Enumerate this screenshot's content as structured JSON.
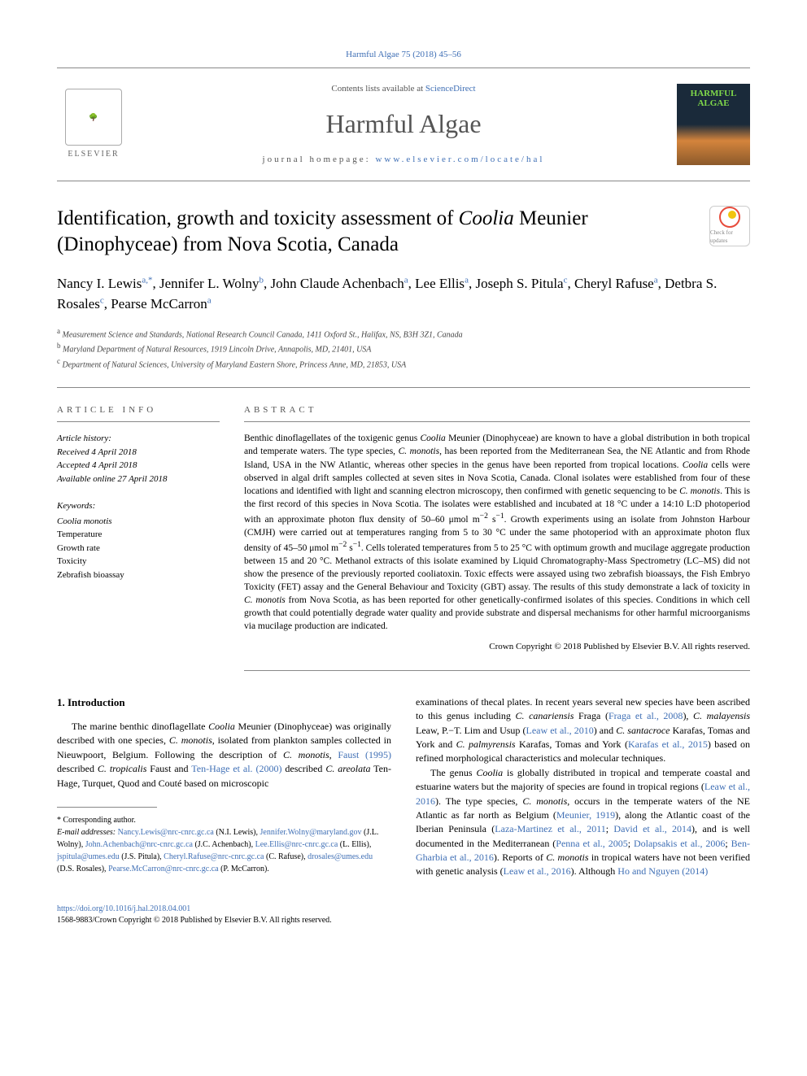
{
  "top_citation": "Harmful Algae 75 (2018) 45–56",
  "header": {
    "contents_prefix": "Contents lists available at ",
    "contents_link": "ScienceDirect",
    "journal_name": "Harmful Algae",
    "homepage_prefix": "journal homepage: ",
    "homepage_link": "www.elsevier.com/locate/hal",
    "publisher_name": "ELSEVIER",
    "cover_title": "HARMFUL ALGAE"
  },
  "title_html": "Identification, growth and toxicity assessment of <em>Coolia</em> Meunier (Dinophyceae) from Nova Scotia, Canada",
  "crossmark_label": "Check for updates",
  "authors_html": "Nancy I. Lewis<sup>a,*</sup>, Jennifer L. Wolny<sup>b</sup>, John Claude Achenbach<sup>a</sup>, Lee Ellis<sup>a</sup>, Joseph S. Pitula<sup>c</sup>, Cheryl Rafuse<sup>a</sup>, Detbra S. Rosales<sup>c</sup>, Pearse McCarron<sup>a</sup>",
  "affiliations": [
    {
      "sup": "a",
      "text": "Measurement Science and Standards, National Research Council Canada, 1411 Oxford St., Halifax, NS, B3H 3Z1, Canada"
    },
    {
      "sup": "b",
      "text": "Maryland Department of Natural Resources, 1919 Lincoln Drive, Annapolis, MD, 21401, USA"
    },
    {
      "sup": "c",
      "text": "Department of Natural Sciences, University of Maryland Eastern Shore, Princess Anne, MD, 21853, USA"
    }
  ],
  "info": {
    "section_label": "ARTICLE INFO",
    "history_title": "Article history:",
    "received": "Received 4 April 2018",
    "accepted": "Accepted 4 April 2018",
    "online": "Available online 27 April 2018",
    "keywords_label": "Keywords:",
    "keywords_html": "<em>Coolia monotis</em><br>Temperature<br>Growth rate<br>Toxicity<br>Zebrafish bioassay"
  },
  "abstract": {
    "section_label": "ABSTRACT",
    "text_html": "Benthic dinoflagellates of the toxigenic genus <em>Coolia</em> Meunier (Dinophyceae) are known to have a global distribution in both tropical and temperate waters. The type species, <em>C. monotis</em>, has been reported from the Mediterranean Sea, the NE Atlantic and from Rhode Island, USA in the NW Atlantic, whereas other species in the genus have been reported from tropical locations. <em>Coolia</em> cells were observed in algal drift samples collected at seven sites in Nova Scotia, Canada. Clonal isolates were established from four of these locations and identified with light and scanning electron microscopy, then confirmed with genetic sequencing to be <em>C. monotis</em>. This is the first record of this species in Nova Scotia. The isolates were established and incubated at 18 °C under a 14:10 L:D photoperiod with an approximate photon flux density of 50–60 μmol m<sup>−2</sup> s<sup>−1</sup>. Growth experiments using an isolate from Johnston Harbour (CMJH) were carried out at temperatures ranging from 5 to 30 °C under the same photoperiod with an approximate photon flux density of 45–50 μmol m<sup>−2</sup> s<sup>−1</sup>. Cells tolerated temperatures from 5 to 25 °C with optimum growth and mucilage aggregate production between 15 and 20 °C. Methanol extracts of this isolate examined by Liquid Chromatography-Mass Spectrometry (LC–MS) did not show the presence of the previously reported cooliatoxin. Toxic effects were assayed using two zebrafish bioassays, the Fish Embryo Toxicity (FET) assay and the General Behaviour and Toxicity (GBT) assay. The results of this study demonstrate a lack of toxicity in <em>C. monotis</em> from Nova Scotia, as has been reported for other genetically-confirmed isolates of this species. Conditions in which cell growth that could potentially degrade water quality and provide substrate and dispersal mechanisms for other harmful microorganisms via mucilage production are indicated.",
    "copyright": "Crown Copyright © 2018 Published by Elsevier B.V. All rights reserved."
  },
  "intro": {
    "heading": "1. Introduction",
    "col1_html": "The marine benthic dinoflagellate <em>Coolia</em> Meunier (Dinophyceae) was originally described with one species, <em>C. monotis</em>, isolated from plankton samples collected in Nieuwpoort, Belgium. Following the description of <em>C. monotis</em>, <a>Faust (1995)</a> described <em>C. tropicalis</em> Faust and <a>Ten-Hage et al. (2000)</a> described <em>C. areolata</em> Ten-Hage, Turquet, Quod and Couté based on microscopic",
    "col2_p1_html": "examinations of thecal plates. In recent years several new species have been ascribed to this genus including <em>C. canariensis</em> Fraga (<a>Fraga et al., 2008</a>), <em>C. malayensis</em> Leaw, P.−T. Lim and Usup (<a>Leaw et al., 2010</a>) and <em>C. santacroce</em> Karafas, Tomas and York and <em>C. palmyrensis</em> Karafas, Tomas and York (<a>Karafas et al., 2015</a>) based on refined morphological characteristics and molecular techniques.",
    "col2_p2_html": "The genus <em>Coolia</em> is globally distributed in tropical and temperate coastal and estuarine waters but the majority of species are found in tropical regions (<a>Leaw et al., 2016</a>). The type species, <em>C. monotis</em>, occurs in the temperate waters of the NE Atlantic as far north as Belgium (<a>Meunier, 1919</a>), along the Atlantic coast of the Iberian Peninsula (<a>Laza-Martinez et al., 2011</a>; <a>David et al., 2014</a>), and is well documented in the Mediterranean (<a>Penna et al., 2005</a>; <a>Dolapsakis et al., 2006</a>; <a>Ben-Gharbia et al., 2016</a>). Reports of <em>C. monotis</em> in tropical waters have not been verified with genetic analysis (<a>Leaw et al., 2016</a>). Although <a>Ho and Nguyen (2014)</a>"
  },
  "footnotes": {
    "corresponding": "* Corresponding author.",
    "emails_label": "E-mail addresses: ",
    "emails_html": "<a>Nancy.Lewis@nrc-cnrc.gc.ca</a> (N.I. Lewis), <a>Jennifer.Wolny@maryland.gov</a> (J.L. Wolny), <a>John.Achenbach@nrc-cnrc.gc.ca</a> (J.C. Achenbach), <a>Lee.Ellis@nrc-cnrc.gc.ca</a> (L. Ellis), <a>jspitula@umes.edu</a> (J.S. Pitula), <a>Cheryl.Rafuse@nrc-cnrc.gc.ca</a> (C. Rafuse), <a>drosales@umes.edu</a> (D.S. Rosales), <a>Pearse.McCarron@nrc-cnrc.gc.ca</a> (P. McCarron)."
  },
  "footer": {
    "doi": "https://doi.org/10.1016/j.hal.2018.04.001",
    "issn_line": "1568-9883/Crown Copyright © 2018 Published by Elsevier B.V. All rights reserved."
  },
  "colors": {
    "link": "#3f6fb5",
    "text": "#000000",
    "muted": "#555555",
    "border": "#888888",
    "cover_green": "#7fd84a"
  }
}
